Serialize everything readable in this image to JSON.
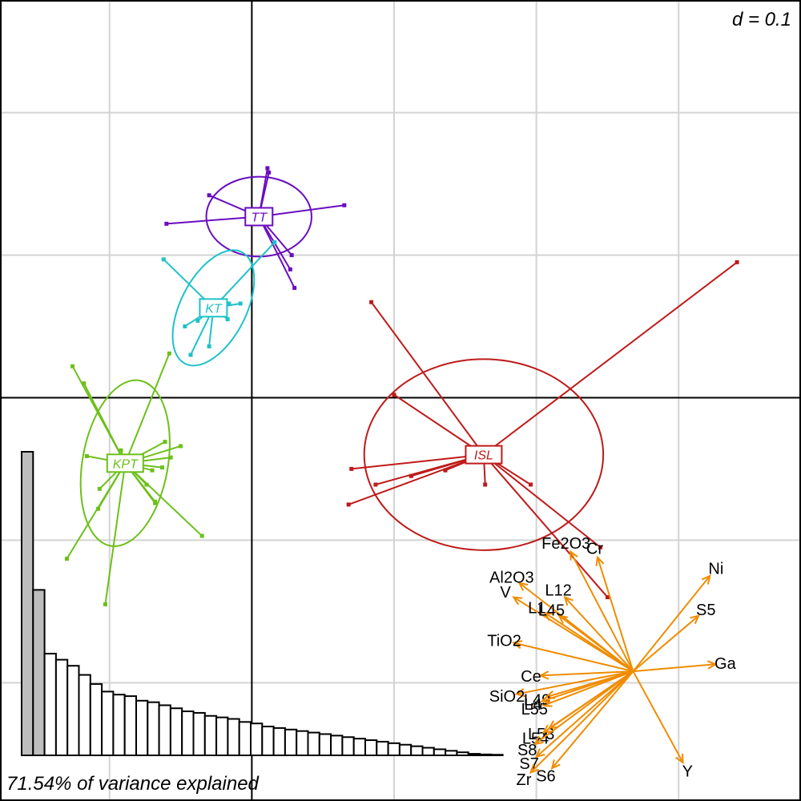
{
  "scale_label": "d = 0.1",
  "footer_label": "71.54% of variance explained",
  "colors": {
    "TT": "#6A0DBF",
    "KT": "#1EC2C8",
    "KPT": "#6CC01A",
    "ISL": "#BF1A1A",
    "arrows": "#F08C00",
    "grid": "#d3d3d3",
    "axis": "#000000",
    "eig_selected": "#bebebe",
    "eig_other": "#ffffff"
  },
  "chart_data": {
    "type": "scatter",
    "description_free": true,
    "xlim": [
      -0.177,
      0.386
    ],
    "ylim": [
      -0.283,
      0.279
    ],
    "grid_step": 0.1,
    "groups": [
      {
        "name": "TT",
        "center": [
          0.005,
          0.127
        ],
        "ellipse": {
          "rx": 0.037,
          "ry": 0.028,
          "angle": 0
        },
        "points": [
          [
            0.011,
            0.161
          ],
          [
            0.012,
            0.158
          ],
          [
            0.028,
            0.1
          ],
          [
            0.027,
            0.09
          ],
          [
            0.03,
            0.077
          ],
          [
            -0.03,
            0.142
          ],
          [
            -0.06,
            0.122
          ],
          [
            0.065,
            0.135
          ]
        ]
      },
      {
        "name": "KT",
        "center": [
          -0.027,
          0.063
        ],
        "ellipse": {
          "rx": 0.044,
          "ry": 0.023,
          "angle": -63
        },
        "points": [
          [
            0.016,
            0.109
          ],
          [
            -0.062,
            0.097
          ],
          [
            -0.016,
            0.066
          ],
          [
            -0.008,
            0.066
          ],
          [
            -0.017,
            0.055
          ],
          [
            -0.047,
            0.05
          ],
          [
            -0.03,
            0.036
          ],
          [
            -0.038,
            0.054
          ],
          [
            -0.043,
            0.03
          ]
        ]
      },
      {
        "name": "KPT",
        "center": [
          -0.089,
          -0.046
        ],
        "ellipse": {
          "rx": 0.059,
          "ry": 0.03,
          "angle": -80
        },
        "points": [
          [
            -0.126,
            0.022
          ],
          [
            -0.058,
            0.031
          ],
          [
            -0.118,
            0.01
          ],
          [
            -0.061,
            -0.031
          ],
          [
            -0.05,
            -0.034
          ],
          [
            -0.092,
            -0.037
          ],
          [
            -0.116,
            -0.041
          ],
          [
            -0.07,
            -0.051
          ],
          [
            -0.057,
            -0.042
          ],
          [
            -0.063,
            -0.049
          ],
          [
            -0.074,
            -0.061
          ],
          [
            -0.107,
            -0.064
          ],
          [
            -0.068,
            -0.073
          ],
          [
            -0.108,
            -0.078
          ],
          [
            -0.068,
            -0.074
          ],
          [
            -0.035,
            -0.097
          ],
          [
            -0.13,
            -0.113
          ],
          [
            -0.103,
            -0.145
          ]
        ]
      },
      {
        "name": "ISL",
        "center": [
          0.163,
          -0.04
        ],
        "ellipse": {
          "rx": 0.084,
          "ry": 0.067,
          "angle": 0
        },
        "points": [
          [
            0.341,
            0.095
          ],
          [
            0.084,
            0.067
          ],
          [
            0.1,
            0.002
          ],
          [
            0.136,
            -0.051
          ],
          [
            0.112,
            -0.055
          ],
          [
            0.087,
            -0.061
          ],
          [
            0.07,
            -0.05
          ],
          [
            0.068,
            -0.075
          ],
          [
            0.164,
            -0.061
          ],
          [
            0.196,
            -0.061
          ],
          [
            0.245,
            -0.105
          ],
          [
            0.25,
            -0.14
          ]
        ]
      }
    ],
    "variables": {
      "origin": [
        0.268,
        -0.192
      ],
      "arrows": [
        {
          "label": "Fe2O3",
          "end": [
            0.224,
            -0.108
          ]
        },
        {
          "label": "Cr",
          "end": [
            0.243,
            -0.112
          ]
        },
        {
          "label": "Al2O3",
          "end": [
            0.188,
            -0.13
          ]
        },
        {
          "label": "V",
          "end": [
            0.184,
            -0.14
          ]
        },
        {
          "label": "L12",
          "end": [
            0.22,
            -0.14
          ]
        },
        {
          "label": "L1",
          "end": [
            0.206,
            -0.151
          ]
        },
        {
          "label": "L45",
          "end": [
            0.216,
            -0.153
          ]
        },
        {
          "label": "TiO2",
          "end": [
            0.184,
            -0.172
          ]
        },
        {
          "label": "Ce",
          "end": [
            0.203,
            -0.195
          ]
        },
        {
          "label": "SiO2",
          "end": [
            0.186,
            -0.208
          ]
        },
        {
          "label": "L49",
          "end": [
            0.207,
            -0.21
          ]
        },
        {
          "label": "L4",
          "end": [
            0.204,
            -0.213
          ]
        },
        {
          "label": "L55",
          "end": [
            0.205,
            -0.216
          ]
        },
        {
          "label": "L53",
          "end": [
            0.209,
            -0.232
          ]
        },
        {
          "label": "L54",
          "end": [
            0.205,
            -0.235
          ]
        },
        {
          "label": "S8",
          "end": [
            0.199,
            -0.243
          ]
        },
        {
          "label": "S7",
          "end": [
            0.2,
            -0.252
          ]
        },
        {
          "label": "Zr",
          "end": [
            0.196,
            -0.263
          ]
        },
        {
          "label": "S6",
          "end": [
            0.211,
            -0.26
          ]
        },
        {
          "label": "Ni",
          "end": [
            0.322,
            -0.125
          ]
        },
        {
          "label": "S5",
          "end": [
            0.314,
            -0.153
          ]
        },
        {
          "label": "Ga",
          "end": [
            0.326,
            -0.187
          ]
        },
        {
          "label": "Y",
          "end": [
            0.303,
            -0.256
          ]
        }
      ]
    },
    "eigenvalues": {
      "selected": 2,
      "values": [
        100,
        54.5,
        33.5,
        31.5,
        29.5,
        26.5,
        23.5,
        21.0,
        20.0,
        19.5,
        18.0,
        17.5,
        16.5,
        15.5,
        14.5,
        14.0,
        13.0,
        12.5,
        12.0,
        11.0,
        10.5,
        9.5,
        9.0,
        8.5,
        8.0,
        7.5,
        7.0,
        6.5,
        6.0,
        5.5,
        5.0,
        4.5,
        4.0,
        3.5,
        3.0,
        2.5,
        2.0,
        1.5,
        1.0,
        0.5,
        0.3,
        0.2
      ]
    }
  }
}
